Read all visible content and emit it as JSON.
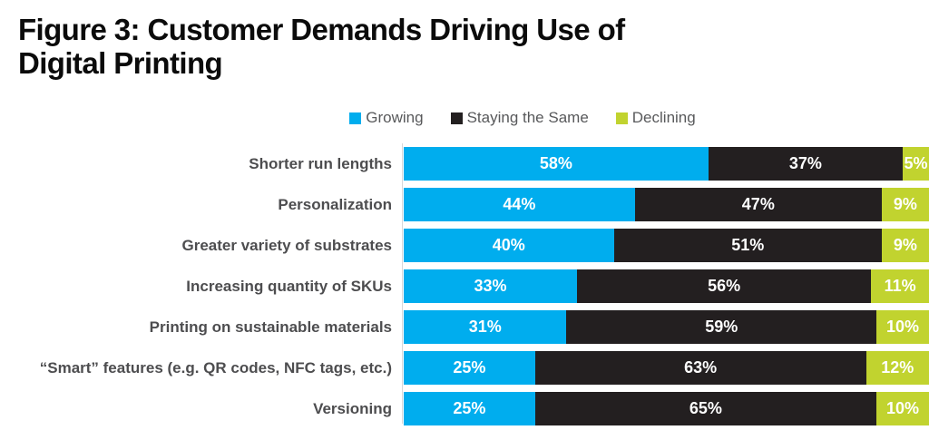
{
  "figure": {
    "title_lines": [
      "Figure 3: Customer Demands Driving Use of",
      "Digital Printing"
    ]
  },
  "chart_data": {
    "type": "bar",
    "orientation": "horizontal",
    "stacked": true,
    "title": "Figure 3: Customer Demands Driving Use of Digital Printing",
    "unit": "%",
    "xlim": [
      0,
      100
    ],
    "legend_position": "top",
    "grid": false,
    "categories": [
      "Shorter run lengths",
      "Personalization",
      "Greater variety of substrates",
      "Increasing quantity of SKUs",
      "Printing on sustainable materials",
      "“Smart” features (e.g. QR codes, NFC tags, etc.)",
      "Versioning"
    ],
    "series": [
      {
        "name": "Growing",
        "color": "#00ADEE",
        "values": [
          58,
          44,
          40,
          33,
          31,
          25,
          25
        ]
      },
      {
        "name": "Staying the Same",
        "color": "#231F20",
        "values": [
          37,
          47,
          51,
          56,
          59,
          63,
          65
        ]
      },
      {
        "name": "Declining",
        "color": "#C1D32F",
        "values": [
          5,
          9,
          9,
          11,
          10,
          12,
          10
        ]
      }
    ],
    "colors": {
      "title_text": "#0b0b0b",
      "category_label_text": "#4D4D4F",
      "legend_text": "#58595B",
      "bar_value_text": "#ffffff",
      "axis_line": "#d7d8da"
    }
  }
}
